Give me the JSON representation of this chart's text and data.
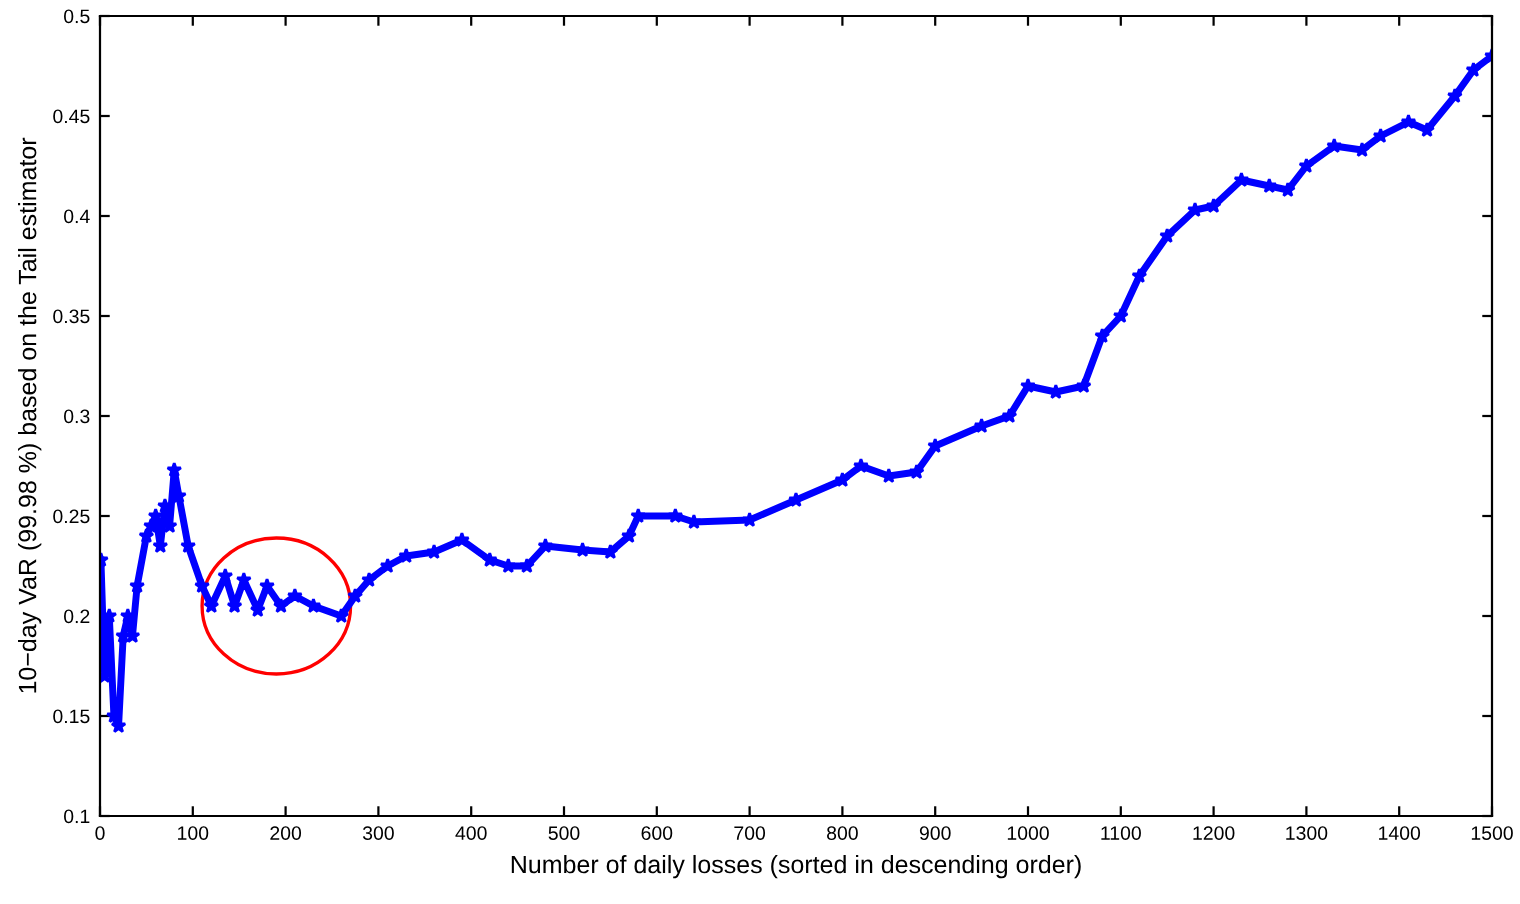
{
  "chart_data": {
    "type": "line",
    "xlabel": "Number of daily losses (sorted in descending order)",
    "ylabel": "10−day VaR (99.98 %) based on the Tail estimator",
    "xlim": [
      0,
      1500
    ],
    "xticks": [
      0,
      100,
      200,
      300,
      400,
      500,
      600,
      700,
      800,
      900,
      1000,
      1100,
      1200,
      1300,
      1400,
      1500
    ],
    "ylim": [
      0.1,
      0.5
    ],
    "yticks": [
      0.1,
      0.15,
      0.2,
      0.25,
      0.3,
      0.35,
      0.4,
      0.45,
      0.5
    ],
    "grid": false,
    "legend": false,
    "marker": "star",
    "line_style": "solid",
    "series": [
      {
        "color": "#0000ff",
        "x": [
          1,
          5,
          10,
          15,
          20,
          25,
          30,
          35,
          40,
          50,
          55,
          60,
          65,
          70,
          75,
          80,
          85,
          95,
          110,
          120,
          135,
          145,
          155,
          170,
          180,
          195,
          210,
          230,
          260,
          275,
          290,
          310,
          330,
          360,
          390,
          420,
          440,
          460,
          480,
          520,
          550,
          570,
          580,
          620,
          640,
          700,
          750,
          800,
          820,
          850,
          880,
          900,
          950,
          980,
          1000,
          1030,
          1060,
          1080,
          1100,
          1120,
          1150,
          1180,
          1200,
          1230,
          1260,
          1280,
          1300,
          1330,
          1360,
          1380,
          1410,
          1430,
          1460,
          1480,
          1500
        ],
        "values": [
          0.228,
          0.17,
          0.2,
          0.15,
          0.145,
          0.19,
          0.2,
          0.19,
          0.215,
          0.24,
          0.245,
          0.25,
          0.235,
          0.255,
          0.245,
          0.273,
          0.26,
          0.235,
          0.215,
          0.205,
          0.22,
          0.205,
          0.218,
          0.203,
          0.215,
          0.205,
          0.21,
          0.205,
          0.2,
          0.21,
          0.218,
          0.225,
          0.23,
          0.232,
          0.238,
          0.228,
          0.225,
          0.225,
          0.235,
          0.233,
          0.232,
          0.24,
          0.25,
          0.25,
          0.247,
          0.248,
          0.258,
          0.268,
          0.275,
          0.27,
          0.272,
          0.285,
          0.295,
          0.3,
          0.315,
          0.312,
          0.315,
          0.34,
          0.35,
          0.37,
          0.39,
          0.403,
          0.405,
          0.418,
          0.415,
          0.413,
          0.425,
          0.435,
          0.433,
          0.44,
          0.447,
          0.443,
          0.46,
          0.473,
          0.48
        ]
      }
    ]
  }
}
